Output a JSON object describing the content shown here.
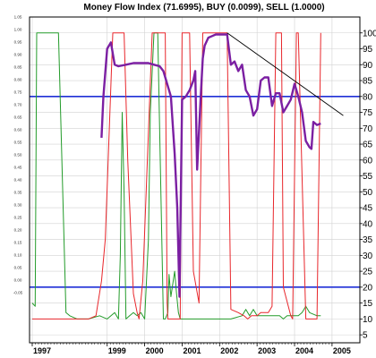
{
  "chart_data": {
    "type": "line",
    "title": "Money Flow Index (71.6995), BUY (0.0099), SELL (1.0000)",
    "xlabel": "",
    "ylabel": "",
    "grid": true,
    "x_ticks": [
      "1997",
      "1999",
      "2000",
      "2001",
      "2002",
      "2003",
      "2004",
      "2005"
    ],
    "y_right": {
      "ylim": [
        2.5,
        105
      ],
      "ticks": [
        5,
        10,
        15,
        20,
        25,
        30,
        35,
        40,
        45,
        50,
        55,
        60,
        65,
        70,
        75,
        80,
        85,
        90,
        95,
        100
      ]
    },
    "y_left": {
      "ylim": [
        -0.25,
        1.05
      ],
      "ticks": [
        "1.05",
        "1.00",
        "0.95",
        "0.90",
        "0.85",
        "0.80",
        "0.75",
        "0.70",
        "0.65",
        "0.60",
        "0.55",
        "0.50",
        "0.45",
        "0.40",
        "0.35",
        "0.30",
        "0.25",
        "0.20",
        "0.15",
        "0.10",
        "0.05",
        "0.00",
        "-0.05"
      ]
    },
    "reference_lines": [
      {
        "value": 80,
        "color": "#1f2fd6"
      },
      {
        "value": 20,
        "color": "#1f2fd6"
      }
    ],
    "trend_line": {
      "color": "#000000",
      "points": [
        [
          2002.2,
          100
        ],
        [
          2005.3,
          74
        ]
      ]
    },
    "series": [
      {
        "color": "#7b1fa2",
        "x": [
          1998.85,
          1998.9,
          1999.0,
          1999.1,
          1999.2,
          1999.3,
          1999.5,
          1999.7,
          1999.9,
          2000.1,
          2000.25,
          2000.4,
          2000.5,
          2000.6,
          2000.7,
          2000.8,
          2000.87,
          2000.93,
          2001.0,
          2001.1,
          2001.2,
          2001.3,
          2001.35,
          2001.4,
          2001.5,
          2001.55,
          2001.6,
          2001.7,
          2001.8,
          2001.9,
          2002.0,
          2002.1,
          2002.2,
          2002.3,
          2002.4,
          2002.5,
          2002.6,
          2002.7,
          2002.8,
          2002.9,
          2003.0,
          2003.1,
          2003.2,
          2003.3,
          2003.4,
          2003.5,
          2003.6,
          2003.7,
          2003.8,
          2003.9,
          2004.0,
          2004.1,
          2004.2,
          2004.3,
          2004.4,
          2004.45,
          2004.5,
          2004.6,
          2004.7
        ],
        "y": [
          67,
          80,
          95,
          97,
          90,
          89.5,
          90,
          90.5,
          90.5,
          90.5,
          90,
          89.5,
          88,
          84,
          80,
          62,
          45,
          17,
          79,
          80,
          82,
          85,
          88,
          57,
          81,
          92,
          96,
          98.5,
          99,
          99.5,
          99.5,
          99.5,
          99.5,
          90,
          91,
          88,
          90,
          82,
          80,
          74,
          76,
          85,
          86,
          86,
          77,
          81,
          81,
          75,
          77,
          79,
          84,
          80,
          75,
          66,
          64,
          63.5,
          72,
          71,
          71.5
        ]
      },
      {
        "color": "#e8262b",
        "x": [
          1997.0,
          1997.7,
          1998.0,
          1998.3,
          1998.5,
          1998.7,
          1998.85,
          1998.95,
          1999.15,
          1999.22,
          1999.45,
          1999.55,
          1999.7,
          1999.8,
          1999.85,
          1999.95,
          2000.2,
          2000.4,
          2000.55,
          2000.6,
          2000.62,
          2000.67,
          2000.9,
          2000.95,
          2001.0,
          2001.1,
          2001.2,
          2001.3,
          2001.45,
          2001.55,
          2001.9,
          2002.0,
          2002.15,
          2002.2,
          2002.3,
          2002.5,
          2002.65,
          2002.75,
          2002.85,
          2003.0,
          2003.1,
          2003.3,
          2003.4,
          2003.5,
          2003.65,
          2003.7,
          2003.9,
          2003.95,
          2004.05,
          2004.1,
          2004.3,
          2004.4,
          2004.55,
          2004.6,
          2004.7
        ],
        "y": [
          10,
          10,
          10,
          10,
          10,
          11,
          22,
          35,
          100,
          100,
          100,
          60,
          18,
          12,
          10,
          22,
          100,
          100,
          100,
          15,
          10,
          10,
          10,
          10,
          100,
          100,
          100,
          25,
          15,
          100,
          100,
          100,
          100,
          100,
          13,
          12,
          11,
          10,
          11,
          11,
          12,
          12,
          14,
          100,
          100,
          20,
          11,
          10,
          100,
          100,
          10,
          10,
          10,
          10,
          100
        ]
      },
      {
        "color": "#239b2a",
        "x": [
          1997.0,
          1997.08,
          1997.12,
          1997.15,
          1997.5,
          1997.6,
          1997.7,
          1997.9,
          1998.0,
          1998.2,
          1998.5,
          1998.8,
          1999.0,
          1999.2,
          1999.3,
          1999.35,
          1999.4,
          1999.45,
          1999.5,
          1999.6,
          1999.7,
          1999.8,
          1999.9,
          2000.0,
          2000.1,
          2000.15,
          2000.25,
          2000.35,
          2000.5,
          2000.55,
          2000.62,
          2000.65,
          2000.7,
          2000.8,
          2000.85,
          2000.9,
          2000.95,
          2001.0,
          2001.2,
          2001.5,
          2002.0,
          2002.3,
          2002.6,
          2002.7,
          2002.8,
          2002.9,
          2003.0,
          2003.2,
          2003.4,
          2003.6,
          2003.7,
          2003.8,
          2003.9,
          2004.0,
          2004.1,
          2004.2,
          2004.3,
          2004.4,
          2004.6,
          2004.7
        ],
        "y": [
          15,
          14,
          100,
          100,
          100,
          100,
          100,
          12,
          11,
          10,
          10,
          11,
          10,
          12,
          10,
          30,
          75,
          50,
          10,
          11,
          12,
          11,
          12,
          10,
          35,
          75,
          100,
          100,
          10,
          10,
          12,
          24,
          17,
          25,
          18,
          12,
          10,
          10,
          10,
          10,
          10,
          10,
          11,
          13,
          11,
          13,
          11,
          11,
          11,
          11,
          10,
          11,
          11,
          11,
          11,
          12,
          14,
          12,
          11,
          11
        ]
      }
    ]
  }
}
